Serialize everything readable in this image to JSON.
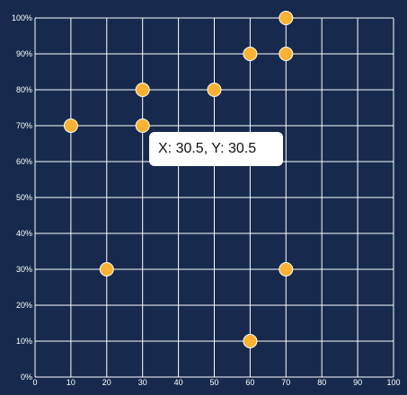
{
  "chart_data": {
    "type": "scatter",
    "title": "",
    "xlabel": "",
    "ylabel": "",
    "xlim": [
      0,
      100
    ],
    "ylim": [
      0,
      100
    ],
    "x_ticks": [
      0,
      10,
      20,
      30,
      40,
      50,
      60,
      70,
      80,
      90,
      100
    ],
    "y_ticks": [
      "0%",
      "10%",
      "20%",
      "30%",
      "40%",
      "50%",
      "60%",
      "70%",
      "80%",
      "90%",
      "100%"
    ],
    "grid": true,
    "legend": "none",
    "points": [
      {
        "x": 70,
        "y": 100
      },
      {
        "x": 60,
        "y": 90
      },
      {
        "x": 70,
        "y": 90
      },
      {
        "x": 30,
        "y": 80
      },
      {
        "x": 50,
        "y": 80
      },
      {
        "x": 10,
        "y": 70
      },
      {
        "x": 30,
        "y": 70
      },
      {
        "x": 20,
        "y": 30
      },
      {
        "x": 70,
        "y": 30
      },
      {
        "x": 60,
        "y": 10
      }
    ],
    "colors": {
      "background": "#172a4d",
      "grid": "#ffffff",
      "point": "#f9b233",
      "point_stroke": "#ffffff"
    }
  },
  "tooltip": {
    "text": "X: 30.5, Y: 30.5"
  }
}
